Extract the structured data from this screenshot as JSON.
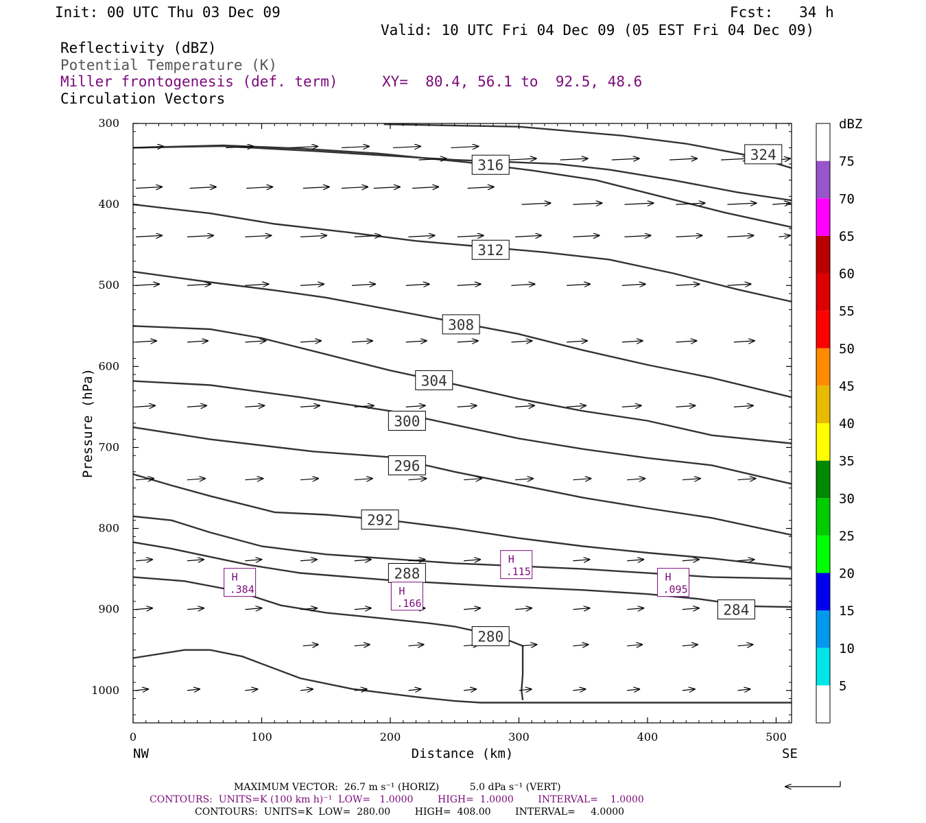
{
  "header": {
    "init": "Init: 00 UTC Thu 03 Dec 09",
    "fcst": "Fcst:   34 h",
    "valid": "Valid: 10 UTC Fri 04 Dec 09 (05 EST Fri 04 Dec 09)",
    "field1": "Reflectivity (dBZ)",
    "field2": "Potential Temperature (K)",
    "field3": "Miller frontogenesis (def. term)",
    "xy": "XY=  80.4, 56.1 to  92.5, 48.6",
    "field4": "Circulation Vectors"
  },
  "footer": {
    "line1": "MAXIMUM VECTOR:  26.7 m s⁻¹ (HORIZ)          5.0 dPa s⁻¹ (VERT)",
    "line2": "CONTOURS:  UNITS=K (100 km h)⁻¹  LOW=   1.0000        HIGH=  1.0000        INTERVAL=    1.0000",
    "line3": "CONTOURS:  UNITS=K  LOW=  280.00        HIGH=  408.00        INTERVAL=     4.0000"
  },
  "colors": {
    "contour": "#333333",
    "purple": "#7a0a7a",
    "dbz": [
      "#00e6e6",
      "#0099ee",
      "#0000ee",
      "#00ff00",
      "#00cc00",
      "#008800",
      "#ffff00",
      "#e6bb00",
      "#ff8c00",
      "#ff0000",
      "#dd0000",
      "#bb0000",
      "#ff00ff",
      "#9955cc"
    ]
  },
  "chart_data": {
    "type": "cross-section",
    "xlabel": "Distance (km)",
    "ylabel": "Pressure (hPa)",
    "xlim": [
      0,
      512
    ],
    "ylim": [
      1040,
      300
    ],
    "xticks": [
      0,
      100,
      200,
      300,
      400,
      500
    ],
    "yticks": [
      300,
      400,
      500,
      600,
      700,
      800,
      900,
      1000
    ],
    "x_end_labels": {
      "left": "NW",
      "right": "SE"
    },
    "colorbar": {
      "label": "dBZ",
      "ticks": [
        "5",
        "10",
        "15",
        "20",
        "25",
        "30",
        "35",
        "40",
        "45",
        "50",
        "55",
        "60",
        "65",
        "70",
        "75"
      ]
    },
    "theta_contours": [
      {
        "label": "280",
        "points": [
          [
            0,
            960
          ],
          [
            40,
            950
          ],
          [
            60,
            950
          ],
          [
            85,
            958
          ],
          [
            130,
            985
          ],
          [
            170,
            998
          ],
          [
            220,
            1008
          ],
          [
            250,
            1013
          ],
          [
            270,
            1015
          ],
          [
            300,
            1015
          ],
          [
            400,
            1015
          ],
          [
            512,
            1015
          ]
        ]
      },
      {
        "label": "280b",
        "points": [
          [
            0,
            860
          ],
          [
            40,
            865
          ],
          [
            80,
            877
          ],
          [
            115,
            895
          ],
          [
            150,
            904
          ],
          [
            200,
            912
          ],
          [
            230,
            917
          ],
          [
            250,
            921
          ],
          [
            270,
            928
          ],
          [
            290,
            937
          ],
          [
            303,
            945
          ],
          [
            303,
            960
          ],
          [
            303,
            980
          ],
          [
            302,
            1000
          ],
          [
            303,
            1012
          ]
        ]
      },
      {
        "label": "284",
        "points": [
          [
            0,
            817
          ],
          [
            30,
            825
          ],
          [
            60,
            835
          ],
          [
            90,
            845
          ],
          [
            130,
            855
          ],
          [
            200,
            864
          ],
          [
            280,
            871
          ],
          [
            350,
            876
          ],
          [
            400,
            881
          ],
          [
            440,
            887
          ],
          [
            480,
            896
          ],
          [
            512,
            897
          ]
        ]
      },
      {
        "label": "288",
        "points": [
          [
            0,
            785
          ],
          [
            30,
            790
          ],
          [
            60,
            805
          ],
          [
            100,
            822
          ],
          [
            150,
            832
          ],
          [
            250,
            843
          ],
          [
            350,
            850
          ],
          [
            450,
            860
          ],
          [
            512,
            862
          ]
        ]
      },
      {
        "label": "292",
        "points": [
          [
            0,
            733
          ],
          [
            30,
            747
          ],
          [
            60,
            760
          ],
          [
            110,
            780
          ],
          [
            150,
            783
          ],
          [
            200,
            790
          ],
          [
            250,
            800
          ],
          [
            300,
            812
          ],
          [
            350,
            822
          ],
          [
            400,
            830
          ],
          [
            450,
            837
          ],
          [
            512,
            848
          ]
        ]
      },
      {
        "label": "296",
        "points": [
          [
            0,
            675
          ],
          [
            60,
            690
          ],
          [
            140,
            705
          ],
          [
            200,
            712
          ],
          [
            250,
            730
          ],
          [
            300,
            746
          ],
          [
            350,
            762
          ],
          [
            400,
            775
          ],
          [
            450,
            787
          ],
          [
            512,
            808
          ]
        ]
      },
      {
        "label": "300",
        "points": [
          [
            0,
            618
          ],
          [
            60,
            623
          ],
          [
            130,
            638
          ],
          [
            200,
            655
          ],
          [
            250,
            672
          ],
          [
            300,
            689
          ],
          [
            350,
            702
          ],
          [
            400,
            713
          ],
          [
            450,
            722
          ],
          [
            512,
            745
          ]
        ]
      },
      {
        "label": "304",
        "points": [
          [
            0,
            550
          ],
          [
            60,
            554
          ],
          [
            100,
            565
          ],
          [
            150,
            585
          ],
          [
            200,
            605
          ],
          [
            250,
            622
          ],
          [
            300,
            640
          ],
          [
            350,
            655
          ],
          [
            400,
            667
          ],
          [
            450,
            685
          ],
          [
            512,
            695
          ]
        ]
      },
      {
        "label": "308",
        "points": [
          [
            0,
            483
          ],
          [
            60,
            496
          ],
          [
            110,
            506
          ],
          [
            150,
            515
          ],
          [
            200,
            530
          ],
          [
            250,
            545
          ],
          [
            300,
            560
          ],
          [
            350,
            580
          ],
          [
            400,
            598
          ],
          [
            450,
            614
          ],
          [
            512,
            638
          ]
        ]
      },
      {
        "label": "312",
        "points": [
          [
            0,
            400
          ],
          [
            60,
            411
          ],
          [
            110,
            424
          ],
          [
            170,
            435
          ],
          [
            220,
            445
          ],
          [
            270,
            452
          ],
          [
            320,
            459
          ],
          [
            370,
            468
          ],
          [
            420,
            485
          ],
          [
            470,
            505
          ],
          [
            512,
            520
          ]
        ]
      },
      {
        "label": "316",
        "points": [
          [
            0,
            330
          ],
          [
            70,
            327
          ],
          [
            130,
            331
          ],
          [
            190,
            337
          ],
          [
            260,
            348
          ],
          [
            310,
            358
          ],
          [
            360,
            370
          ],
          [
            410,
            390
          ],
          [
            460,
            410
          ],
          [
            512,
            428
          ]
        ]
      },
      {
        "label": "320",
        "points": [
          [
            0,
            330
          ],
          [
            70,
            328
          ],
          [
            140,
            334
          ],
          [
            200,
            340
          ],
          [
            250,
            345
          ],
          [
            330,
            350
          ],
          [
            370,
            357
          ],
          [
            420,
            370
          ],
          [
            470,
            385
          ],
          [
            512,
            395
          ]
        ]
      },
      {
        "label": "324",
        "points": [
          [
            195,
            301
          ],
          [
            300,
            304
          ],
          [
            380,
            315
          ],
          [
            430,
            325
          ],
          [
            480,
            340
          ],
          [
            512,
            355
          ]
        ]
      }
    ],
    "theta_labels": [
      {
        "text": "324",
        "x": 490,
        "y": 338
      },
      {
        "text": "316",
        "x": 278,
        "y": 351
      },
      {
        "text": "312",
        "x": 278,
        "y": 456
      },
      {
        "text": "308",
        "x": 255,
        "y": 548
      },
      {
        "text": "304",
        "x": 234,
        "y": 617
      },
      {
        "text": "300",
        "x": 213,
        "y": 667
      },
      {
        "text": "296",
        "x": 213,
        "y": 722
      },
      {
        "text": "292",
        "x": 192,
        "y": 789
      },
      {
        "text": "288",
        "x": 213,
        "y": 855
      },
      {
        "text": "284",
        "x": 469,
        "y": 900
      },
      {
        "text": "280",
        "x": 278,
        "y": 933
      }
    ],
    "frontogenesis_maxima": [
      {
        "label": "H",
        "value": ".384",
        "x": 83,
        "y": 867
      },
      {
        "label": "H",
        "value": ".166",
        "x": 213,
        "y": 884
      },
      {
        "label": "H",
        "value": ".115",
        "x": 298,
        "y": 845
      },
      {
        "label": "H",
        "value": ".095",
        "x": 420,
        "y": 867
      }
    ],
    "vector_rows": [
      {
        "p": 330,
        "x": [
          0,
          70,
          120,
          160,
          200,
          245
        ],
        "len": 40
      },
      {
        "p": 345,
        "x": [
          220,
          290,
          330,
          370,
          415,
          455,
          500
        ],
        "len": 40
      },
      {
        "p": 380,
        "x": [
          0,
          42,
          86,
          130,
          160,
          185,
          215,
          258
        ],
        "len": 38
      },
      {
        "p": 400,
        "x": [
          300,
          340,
          380,
          420,
          460,
          495
        ],
        "len": 42
      },
      {
        "p": 440,
        "x": [
          0,
          40,
          85,
          128,
          170,
          212,
          250,
          295,
          340,
          380,
          420,
          460,
          500
        ],
        "len": 38
      },
      {
        "p": 500,
        "x": [
          0,
          40,
          85,
          128,
          168,
          210,
          250,
          292,
          335,
          378,
          420,
          460
        ],
        "len": 34
      },
      {
        "p": 570,
        "x": [
          0,
          40,
          85,
          128,
          168,
          210,
          250,
          292,
          335,
          378,
          420,
          465
        ],
        "len": 30
      },
      {
        "p": 650,
        "x": [
          0,
          40,
          85,
          128,
          170,
          210,
          250,
          295,
          335,
          378,
          420,
          465
        ],
        "len": 28
      },
      {
        "p": 740,
        "x": [
          0,
          40,
          85,
          128,
          170,
          212,
          255,
          295,
          340,
          382,
          425,
          468
        ],
        "len": 26
      },
      {
        "p": 840,
        "x": [
          0,
          40,
          85,
          128,
          170,
          212,
          255,
          295,
          340,
          382,
          425,
          468
        ],
        "len": 24
      },
      {
        "p": 900,
        "x": [
          0,
          40,
          85,
          128,
          170,
          212,
          255,
          295,
          340,
          382,
          425,
          468
        ],
        "len": 24
      },
      {
        "p": 945,
        "x": [
          130,
          170,
          212,
          255,
          300,
          340,
          382,
          425,
          468
        ],
        "len": 22
      },
      {
        "p": 1000,
        "x": [
          0,
          40,
          85,
          128,
          170,
          212,
          255,
          298,
          340,
          382,
          425,
          468
        ],
        "len": 18
      }
    ]
  }
}
